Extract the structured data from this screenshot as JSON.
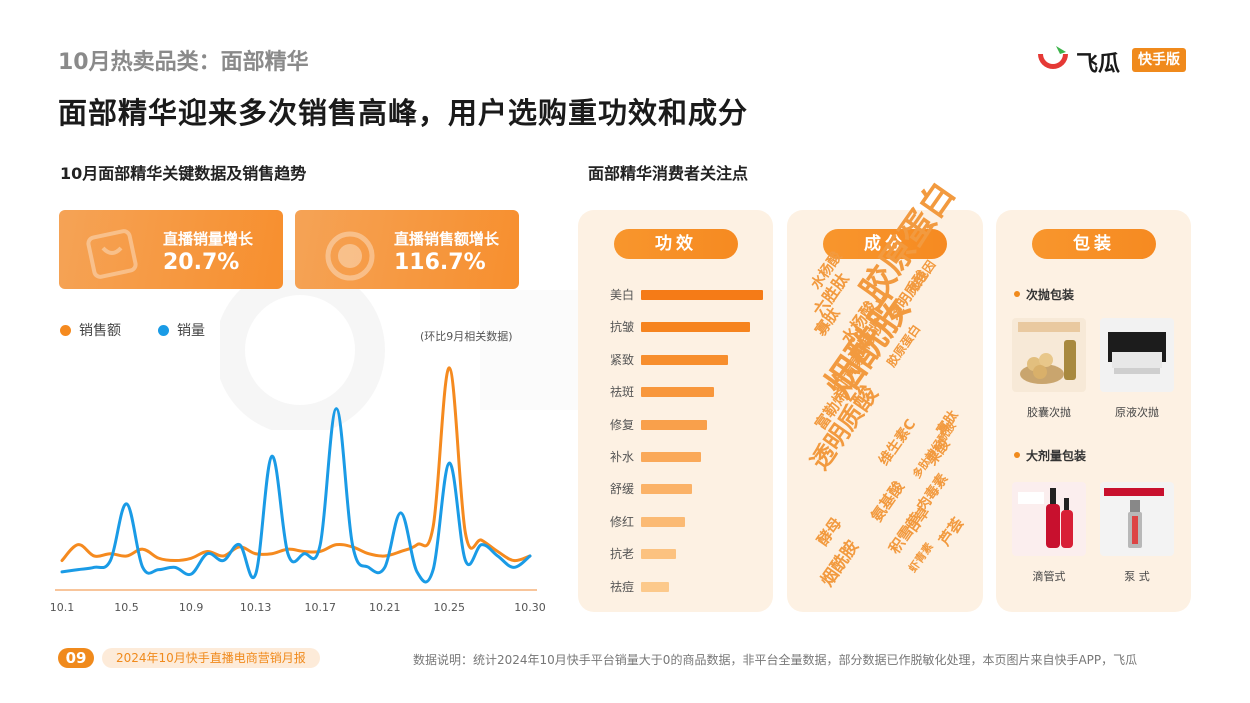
{
  "header": {
    "supertitle": "10月热卖品类：面部精华",
    "title": "面部精华迎来多次销售高峰，用户选购重功效和成分",
    "logo_name": "飞瓜",
    "logo_badge": "快手版"
  },
  "left_section": {
    "title": "10月面部精华关键数据及销售趋势",
    "kpis": [
      {
        "label": "直播销量增长",
        "value": "20.7%"
      },
      {
        "label": "直播销售额增长",
        "value": "116.7%"
      }
    ],
    "note": "(环比9月相关数据)"
  },
  "right_section": {
    "title": "面部精华消费者关注点",
    "panels": {
      "efficacy": {
        "title": "功效"
      },
      "ingredients": {
        "title": "成分",
        "words": [
          "胶原蛋白",
          "烟酰胺",
          "透明质酸",
          "水杨酸",
          "六胜肽",
          "寡肽",
          "水杨酸",
          "油橄榄",
          "虾青素",
          "富勒烯",
          "玻色因",
          "透明质酸",
          "胶原蛋白",
          "寡肽",
          "果酸",
          "维生素C",
          "多肽神经酰胺",
          "酵母",
          "积雪草",
          "甘草",
          "烟酰胺",
          "氨基酸",
          "肉毒素",
          "虾青素",
          "芦荟"
        ]
      },
      "packaging": {
        "title": "包装",
        "groups": [
          {
            "title": "次抛包装",
            "items": [
              "胶囊次抛",
              "原液次抛"
            ]
          },
          {
            "title": "大剂量包装",
            "items": [
              "滴管式",
              "泵 式"
            ]
          }
        ]
      }
    }
  },
  "chart_data": [
    {
      "type": "line",
      "title": "",
      "x": [
        "10.1",
        "10.2",
        "10.3",
        "10.4",
        "10.5",
        "10.6",
        "10.7",
        "10.8",
        "10.9",
        "10.10",
        "10.11",
        "10.12",
        "10.13",
        "10.14",
        "10.15",
        "10.16",
        "10.17",
        "10.18",
        "10.19",
        "10.20",
        "10.21",
        "10.22",
        "10.23",
        "10.24",
        "10.25",
        "10.26",
        "10.27",
        "10.28",
        "10.29",
        "10.30"
      ],
      "x_ticks": [
        "10.1",
        "10.5",
        "10.9",
        "10.13",
        "10.17",
        "10.21",
        "10.25",
        "10.30"
      ],
      "series": [
        {
          "name": "销售额",
          "color": "#f58a1f",
          "values": [
            3,
            10,
            5,
            6,
            5,
            8,
            4,
            3,
            4,
            7,
            5,
            9,
            6,
            6,
            8,
            7,
            7,
            10,
            9,
            6,
            5,
            7,
            10,
            18,
            88,
            15,
            12,
            7,
            3,
            5
          ]
        },
        {
          "name": "销量",
          "color": "#1a9be6",
          "values": [
            -2,
            -1,
            0,
            3,
            28,
            0,
            -1,
            0,
            -3,
            6,
            3,
            10,
            -3,
            49,
            6,
            6,
            10,
            70,
            10,
            0,
            0,
            24,
            -2,
            -1,
            46,
            3,
            10,
            5,
            0,
            5
          ]
        }
      ],
      "ylim": [
        -10,
        95
      ],
      "grid": false,
      "legend": "top-left"
    },
    {
      "type": "bar",
      "title": "功效",
      "categories": [
        "美白",
        "抗皱",
        "紧致",
        "祛斑",
        "修复",
        "补水",
        "舒缓",
        "修红",
        "抗老",
        "祛痘"
      ],
      "values": [
        100,
        89,
        71,
        60,
        54,
        49,
        42,
        36,
        29,
        23
      ],
      "colors": [
        "#f57b17",
        "#f6841f",
        "#f78e2d",
        "#f8973c",
        "#f9a04b",
        "#faa959",
        "#fbb267",
        "#fbba74",
        "#fcc280",
        "#fcc98b"
      ],
      "xlim": [
        0,
        100
      ]
    }
  ],
  "footer": {
    "page": "09",
    "report": "2024年10月快手直播电商营销月报",
    "note": "数据说明：统计2024年10月快手平台销量大于0的商品数据，非平台全量数据，部分数据已作脱敏化处理，本页图片来自快手APP，飞瓜"
  }
}
